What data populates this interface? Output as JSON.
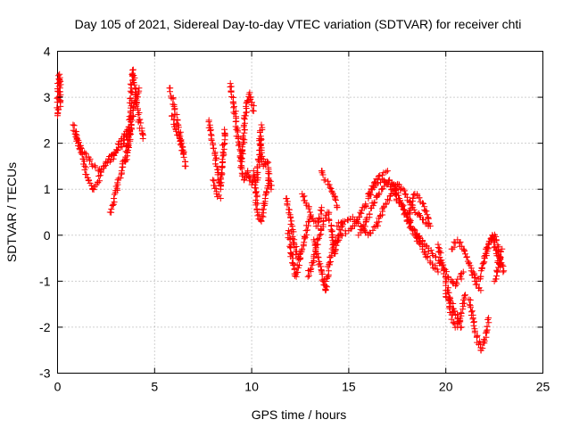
{
  "chart_data": {
    "type": "scatter",
    "title": "Day 105 of 2021, Sidereal Day-to-day VTEC variation (SDTVAR) for receiver chti",
    "xlabel": "GPS time / hours",
    "ylabel": "SDTVAR / TECUs",
    "xlim": [
      0,
      25
    ],
    "ylim": [
      -3,
      4
    ],
    "x_ticks": [
      0,
      5,
      10,
      15,
      20,
      25
    ],
    "y_ticks": [
      -3,
      -2,
      -1,
      0,
      1,
      2,
      3,
      4
    ],
    "grid": true,
    "marker": "+",
    "series_color": "#ff0000",
    "tracks": [
      {
        "name": "t01",
        "x": [
          0.0,
          0.05,
          0.1,
          0.15
        ],
        "y": [
          2.6,
          3.3,
          3.5,
          2.8
        ]
      },
      {
        "name": "t02",
        "x": [
          0.8,
          1.0,
          1.2,
          1.4,
          1.6,
          1.8,
          2.0,
          2.2,
          2.5,
          2.8,
          3.1,
          3.4,
          3.6,
          3.8
        ],
        "y": [
          2.4,
          2.1,
          1.8,
          1.5,
          1.2,
          1.0,
          1.1,
          1.3,
          1.6,
          1.75,
          1.85,
          2.0,
          2.2,
          2.4
        ]
      },
      {
        "name": "t03",
        "x": [
          0.9,
          1.2,
          1.5,
          1.8,
          2.1,
          2.4,
          2.7,
          3.0,
          3.3,
          3.6
        ],
        "y": [
          2.2,
          1.9,
          1.7,
          1.5,
          1.4,
          1.5,
          1.6,
          1.8,
          2.1,
          2.3
        ]
      },
      {
        "name": "t04",
        "x": [
          2.7,
          2.9,
          3.1,
          3.3,
          3.5
        ],
        "y": [
          0.5,
          0.8,
          1.1,
          1.4,
          1.7
        ]
      },
      {
        "name": "t05",
        "x": [
          3.5,
          3.7,
          3.8,
          3.9,
          4.0,
          4.2,
          4.4
        ],
        "y": [
          1.6,
          2.3,
          3.2,
          3.6,
          3.1,
          2.5,
          2.1
        ]
      },
      {
        "name": "t06",
        "x": [
          3.6,
          3.8,
          4.0,
          4.2
        ],
        "y": [
          1.8,
          2.4,
          2.9,
          3.2
        ]
      },
      {
        "name": "t07",
        "x": [
          5.8,
          6.0,
          6.2,
          6.4,
          6.6
        ],
        "y": [
          3.2,
          2.8,
          2.4,
          2.0,
          1.5
        ]
      },
      {
        "name": "t08",
        "x": [
          5.9,
          6.1,
          6.3,
          6.5
        ],
        "y": [
          2.6,
          2.3,
          2.1,
          1.8
        ]
      },
      {
        "name": "t09",
        "x": [
          7.8,
          8.0,
          8.2,
          8.4,
          8.6
        ],
        "y": [
          2.5,
          2.0,
          1.5,
          1.0,
          2.3
        ]
      },
      {
        "name": "t10",
        "x": [
          8.0,
          8.2,
          8.4
        ],
        "y": [
          1.2,
          0.9,
          0.8
        ]
      },
      {
        "name": "t11",
        "x": [
          8.9,
          9.1,
          9.3,
          9.5,
          9.7,
          9.9,
          10.1
        ],
        "y": [
          3.3,
          2.8,
          2.1,
          1.6,
          2.8,
          3.1,
          2.7
        ]
      },
      {
        "name": "t12",
        "x": [
          9.4,
          9.6,
          9.8,
          10.0,
          10.3,
          10.5
        ],
        "y": [
          1.7,
          1.2,
          1.4,
          1.1,
          1.2,
          2.4
        ]
      },
      {
        "name": "t13",
        "x": [
          10.4,
          10.6,
          10.8,
          11.0
        ],
        "y": [
          2.1,
          1.5,
          1.6,
          1.0
        ]
      },
      {
        "name": "t14",
        "x": [
          10.1,
          10.3,
          10.5,
          10.7,
          10.9
        ],
        "y": [
          1.4,
          0.5,
          0.3,
          0.8,
          1.2
        ]
      },
      {
        "name": "t15",
        "x": [
          11.8,
          12.0,
          12.2,
          12.4,
          12.6,
          12.8,
          13.0
        ],
        "y": [
          0.8,
          0.4,
          -0.2,
          -0.5,
          -0.3,
          0.1,
          0.4
        ]
      },
      {
        "name": "t16",
        "x": [
          11.9,
          12.1,
          12.3,
          12.5
        ],
        "y": [
          0.1,
          -0.6,
          -0.9,
          -0.4
        ]
      },
      {
        "name": "t17",
        "x": [
          12.6,
          12.8,
          13.0,
          13.2,
          13.4,
          13.6
        ],
        "y": [
          0.9,
          0.7,
          0.5,
          0.3,
          0.2,
          0.6
        ]
      },
      {
        "name": "t18",
        "x": [
          12.9,
          13.1,
          13.3,
          13.5,
          13.7,
          13.9,
          14.1,
          14.3,
          14.5,
          14.7
        ],
        "y": [
          -0.9,
          -0.6,
          -0.3,
          0.0,
          0.3,
          0.5,
          0.2,
          -0.4,
          0.0,
          0.3
        ]
      },
      {
        "name": "t19",
        "x": [
          13.2,
          13.4,
          13.6,
          13.8,
          14.0,
          14.2
        ],
        "y": [
          -0.1,
          -0.4,
          -0.8,
          -1.2,
          -0.6,
          -0.2
        ]
      },
      {
        "name": "t20",
        "x": [
          13.6,
          13.8,
          14.0,
          14.2,
          14.4
        ],
        "y": [
          1.4,
          1.2,
          1.1,
          0.9,
          0.6
        ]
      },
      {
        "name": "t21",
        "x": [
          14.2,
          14.6,
          15.0,
          15.4,
          15.8,
          16.2,
          16.6,
          17.0
        ],
        "y": [
          -0.2,
          0.0,
          0.1,
          0.3,
          0.6,
          1.0,
          1.3,
          1.4
        ]
      },
      {
        "name": "t22",
        "x": [
          14.4,
          14.8,
          15.2,
          15.6,
          16.0,
          16.4,
          16.8,
          17.2,
          17.6
        ],
        "y": [
          0.2,
          0.3,
          0.4,
          0.2,
          0.0,
          0.2,
          0.6,
          0.9,
          1.1
        ]
      },
      {
        "name": "t23",
        "x": [
          15.5,
          15.9,
          16.3,
          16.7,
          17.1,
          17.5,
          17.9,
          18.3,
          18.7,
          19.1
        ],
        "y": [
          0.0,
          0.3,
          0.7,
          1.0,
          1.2,
          1.1,
          0.9,
          0.6,
          0.4,
          0.2
        ]
      },
      {
        "name": "t24",
        "x": [
          16.0,
          16.4,
          16.8,
          17.2,
          17.6,
          18.0,
          18.4,
          18.8
        ],
        "y": [
          0.9,
          1.1,
          1.2,
          1.0,
          0.7,
          0.4,
          0.1,
          -0.2
        ]
      },
      {
        "name": "t25",
        "x": [
          17.2,
          17.6,
          18.0,
          18.4,
          18.8,
          19.2,
          19.6
        ],
        "y": [
          1.1,
          0.8,
          0.4,
          0.0,
          -0.3,
          -0.6,
          -0.8
        ]
      },
      {
        "name": "t26",
        "x": [
          18.0,
          18.4,
          18.8,
          19.2
        ],
        "y": [
          0.3,
          0.9,
          0.7,
          0.2
        ]
      },
      {
        "name": "t27",
        "x": [
          18.5,
          18.9,
          19.3,
          19.7,
          20.1,
          20.5,
          20.9
        ],
        "y": [
          0.0,
          -0.2,
          -0.4,
          -0.6,
          -0.9,
          -1.1,
          -0.8
        ]
      },
      {
        "name": "t28",
        "x": [
          19.6,
          19.8,
          20.0,
          20.2,
          20.4,
          20.6,
          20.8
        ],
        "y": [
          -0.2,
          -0.6,
          -1.0,
          -1.4,
          -1.6,
          -1.8,
          -2.0
        ]
      },
      {
        "name": "t29",
        "x": [
          20.0,
          20.2,
          20.4,
          20.6,
          20.8,
          21.0
        ],
        "y": [
          -1.2,
          -1.6,
          -1.9,
          -2.0,
          -1.7,
          -1.3
        ]
      },
      {
        "name": "t30",
        "x": [
          20.3,
          20.6,
          20.9,
          21.2,
          21.5,
          21.8
        ],
        "y": [
          -0.3,
          -0.1,
          -0.3,
          -0.6,
          -1.0,
          -1.2
        ]
      },
      {
        "name": "t31",
        "x": [
          21.2,
          21.4,
          21.6,
          21.8,
          22.0,
          22.2
        ],
        "y": [
          -1.4,
          -1.8,
          -2.2,
          -2.5,
          -2.3,
          -1.8
        ]
      },
      {
        "name": "t32",
        "x": [
          21.4,
          21.6,
          21.8,
          22.0,
          22.2,
          22.4,
          22.6,
          22.8
        ],
        "y": [
          -0.8,
          -1.0,
          -0.9,
          -0.5,
          -0.2,
          0.0,
          -0.4,
          -0.7
        ]
      },
      {
        "name": "t33",
        "x": [
          22.0,
          22.2,
          22.4,
          22.6,
          22.8,
          22.95
        ],
        "y": [
          -0.5,
          -0.2,
          0.0,
          -0.1,
          -0.5,
          -0.8
        ]
      },
      {
        "name": "t34",
        "x": [
          22.5,
          22.7,
          22.9
        ],
        "y": [
          -1.0,
          -0.7,
          -0.3
        ]
      }
    ]
  }
}
